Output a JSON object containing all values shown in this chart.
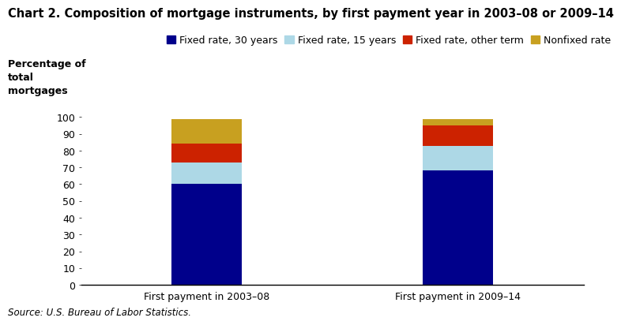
{
  "title": "Chart 2. Composition of mortgage instruments, by first payment year in 2003–08 or 2009–14",
  "ylabel_line1": "Percentage of",
  "ylabel_line2": "total",
  "ylabel_line3": "mortgages",
  "categories": [
    "First payment in 2003–08",
    "First payment in 2009–14"
  ],
  "series": {
    "Fixed rate, 30 years": [
      60,
      68
    ],
    "Fixed rate, 15 years": [
      13,
      15
    ],
    "Fixed rate, other term": [
      11,
      12
    ],
    "Nonfixed rate": [
      15,
      4
    ]
  },
  "colors": {
    "Fixed rate, 30 years": "#00008B",
    "Fixed rate, 15 years": "#ADD8E6",
    "Fixed rate, other term": "#CC2200",
    "Nonfixed rate": "#C8A020"
  },
  "ylim": [
    0,
    100
  ],
  "yticks": [
    0,
    10,
    20,
    30,
    40,
    50,
    60,
    70,
    80,
    90,
    100
  ],
  "source": "Source: U.S. Bureau of Labor Statistics.",
  "background_color": "#FFFFFF",
  "bar_width": 0.28,
  "title_fontsize": 10.5,
  "tick_fontsize": 9,
  "legend_fontsize": 9,
  "source_fontsize": 8.5
}
